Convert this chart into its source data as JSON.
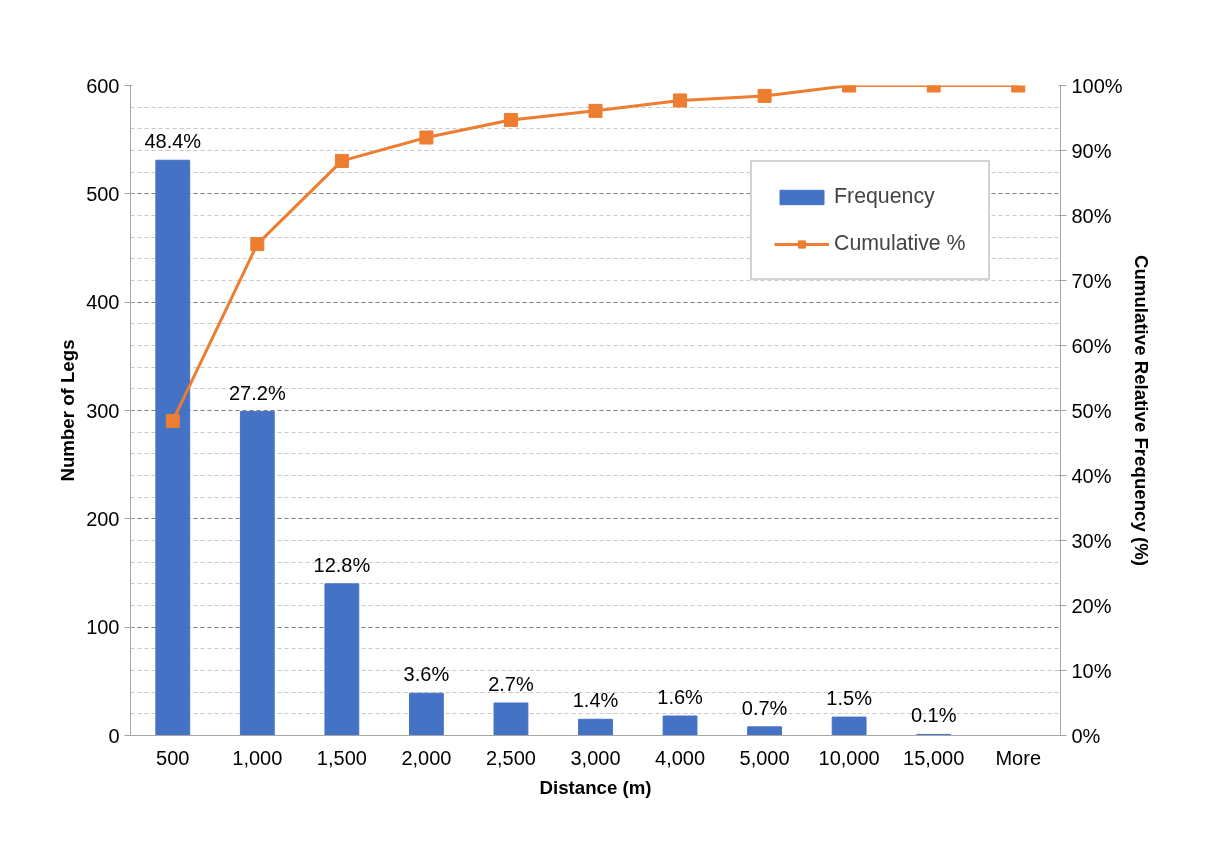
{
  "chart_data": {
    "type": "bar",
    "xlabel": "Distance (m)",
    "ylabel": "Number of Legs",
    "y2label": "Cumulative Relative Frequency (%)",
    "categories": [
      "500",
      "1,000",
      "1,500",
      "2,000",
      "2,500",
      "3,000",
      "4,000",
      "5,000",
      "10,000",
      "15,000",
      "More"
    ],
    "series": [
      {
        "name": "Frequency",
        "color": "#4472c4",
        "values": [
          531,
          299,
          140,
          39,
          30,
          15,
          18,
          8,
          17,
          1,
          0
        ]
      },
      {
        "name": "Cumulative %",
        "type": "line",
        "axis": "y2",
        "color": "#ed7d31",
        "marker": "square",
        "values": [
          48.4,
          75.6,
          88.4,
          92.0,
          94.7,
          96.1,
          97.7,
          98.4,
          100,
          100,
          100
        ]
      }
    ],
    "ylim": [
      0,
      600
    ],
    "yticks": [
      0,
      100,
      200,
      300,
      400,
      500,
      600
    ],
    "y2lim": [
      0,
      100
    ],
    "y2ticks": [
      {
        "value": 0,
        "label": "0%"
      },
      {
        "value": 10,
        "label": "10%"
      },
      {
        "value": 20,
        "label": "20%"
      },
      {
        "value": 30,
        "label": "30%"
      },
      {
        "value": 40,
        "label": "40%"
      },
      {
        "value": 50,
        "label": "50%"
      },
      {
        "value": 60,
        "label": "60%"
      },
      {
        "value": 70,
        "label": "70%"
      },
      {
        "value": 80,
        "label": "80%"
      },
      {
        "value": 90,
        "label": "90%"
      },
      {
        "value": 100,
        "label": "100%"
      }
    ],
    "annotations": [
      {
        "text": "48.4%",
        "x": "500",
        "y": 531
      },
      {
        "text": "27.2%",
        "x": "1,000",
        "y": 299
      },
      {
        "text": "12.8%",
        "x": "1,500",
        "y": 140
      },
      {
        "text": "3.6%",
        "x": "2,000",
        "y": 39
      },
      {
        "text": "2.7%",
        "x": "2,500",
        "y": 30
      },
      {
        "text": "1.4%",
        "x": "3,000",
        "y": 15
      },
      {
        "text": "1.6%",
        "x": "4,000",
        "y": 18
      },
      {
        "text": "0.7%",
        "x": "5,000",
        "y": 8
      },
      {
        "text": "1.5%",
        "x": "10,000",
        "y": 17
      },
      {
        "text": "0.1%",
        "x": "15,000",
        "y": 1
      }
    ],
    "grid": "y",
    "legend": "top right"
  }
}
